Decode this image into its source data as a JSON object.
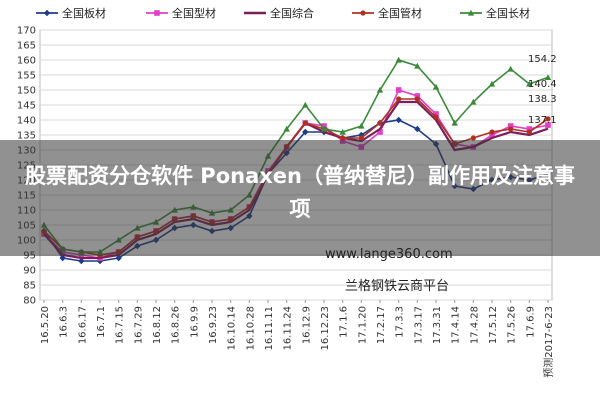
{
  "overlay": {
    "title": "股票配资分仓软件 Ponaxen（普纳替尼）副作用及注意事项",
    "watermark_url": "www.lange360.com",
    "watermark_name": "兰格钢铁云商平台"
  },
  "chart_data": {
    "type": "line",
    "title": "",
    "xlabel": "",
    "ylabel": "",
    "ylim": [
      80,
      170
    ],
    "yticks": [
      80,
      85,
      90,
      95,
      100,
      105,
      110,
      115,
      120,
      125,
      130,
      135,
      140,
      145,
      150,
      155,
      160,
      165,
      170
    ],
    "grid": true,
    "legend_position": "top",
    "x": [
      "16.5.20",
      "16.6.3",
      "16.6.17",
      "16.7.1",
      "16.7.15",
      "16.7.29",
      "16.8.12",
      "16.8.26",
      "16.9.9",
      "16.9.23",
      "16.10.14",
      "16.10.28",
      "16.11.11",
      "16.11.24",
      "16.12.9",
      "16.12.23",
      "17.1.6",
      "17.1.20",
      "17.2.17",
      "17.3.3",
      "17.3.17",
      "17.3.31",
      "17.4.14",
      "17.4.28",
      "17.5.12",
      "17.5.26",
      "17.6.9",
      "预测2017-6-23"
    ],
    "series": [
      {
        "name": "全国板材",
        "color": "#1f3c88",
        "marker": "diamond",
        "values": [
          103,
          94,
          93,
          93,
          94,
          98,
          100,
          104,
          105,
          103,
          104,
          108,
          122,
          129,
          136,
          136,
          134,
          135,
          139,
          140,
          137,
          132,
          118,
          117,
          120,
          121,
          120,
          122
        ]
      },
      {
        "name": "全国型材",
        "color": "#e040c8",
        "marker": "square",
        "values": [
          102,
          96,
          95,
          94,
          96,
          101,
          103,
          107,
          108,
          106,
          107,
          111,
          123,
          131,
          139,
          138,
          133,
          131,
          136,
          150,
          148,
          142,
          132,
          131,
          135,
          138,
          137,
          138.3
        ]
      },
      {
        "name": "全国综合",
        "color": "#7b1f5a",
        "marker": "none",
        "values": [
          102,
          95,
          94,
          94,
          95,
          100,
          102,
          106,
          107,
          105,
          106,
          110,
          122,
          131,
          139,
          136,
          134,
          133,
          137,
          146,
          146,
          140,
          130,
          131,
          134,
          136,
          135,
          137.1
        ]
      },
      {
        "name": "全国管材",
        "color": "#b03020",
        "marker": "circle",
        "values": [
          103,
          97,
          96,
          95,
          96,
          101,
          103,
          107,
          108,
          106,
          107,
          111,
          122,
          131,
          139,
          137,
          134,
          134,
          139,
          147,
          147,
          141,
          132,
          134,
          136,
          137,
          136,
          140.4
        ]
      },
      {
        "name": "全国长材",
        "color": "#3a8a3a",
        "marker": "triangle",
        "values": [
          105,
          97,
          96,
          96,
          100,
          104,
          106,
          110,
          111,
          109,
          110,
          115,
          128,
          137,
          145,
          137,
          136,
          138,
          150,
          160,
          158,
          151,
          139,
          146,
          152,
          157,
          152,
          154.2
        ]
      }
    ],
    "end_labels": [
      "154.2",
      "140.4",
      "138.3",
      "137.1"
    ]
  }
}
